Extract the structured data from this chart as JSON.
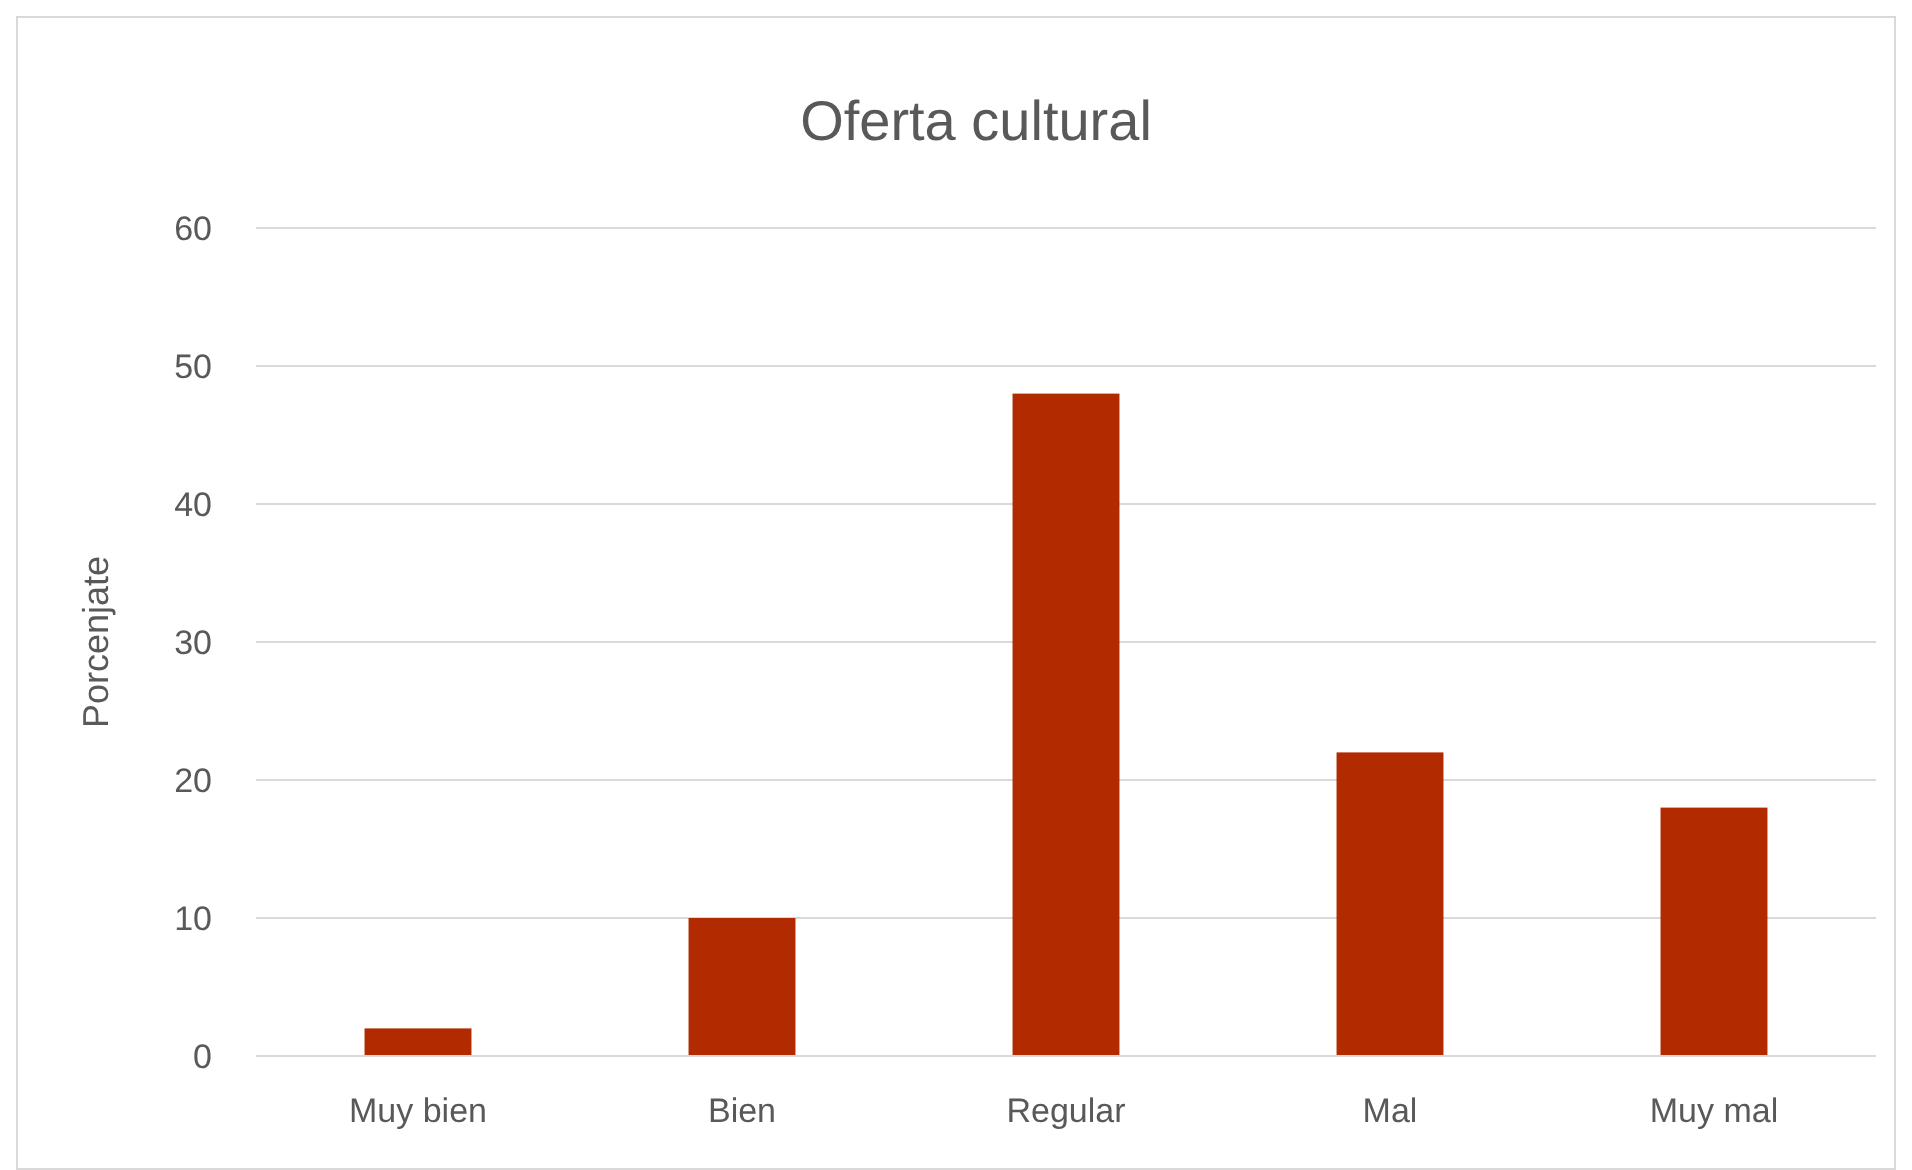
{
  "chart_data": {
    "type": "bar",
    "title": "Oferta cultural",
    "ylabel": "Porcenjate",
    "categories": [
      "Muy bien",
      "Bien",
      "Regular",
      "Mal",
      "Muy mal"
    ],
    "values": [
      2,
      10,
      48,
      22,
      18
    ],
    "color": "#b22a00",
    "ylim": [
      0,
      60
    ],
    "yticks": [
      0,
      10,
      20,
      30,
      40,
      50,
      60
    ],
    "grid": "y"
  }
}
